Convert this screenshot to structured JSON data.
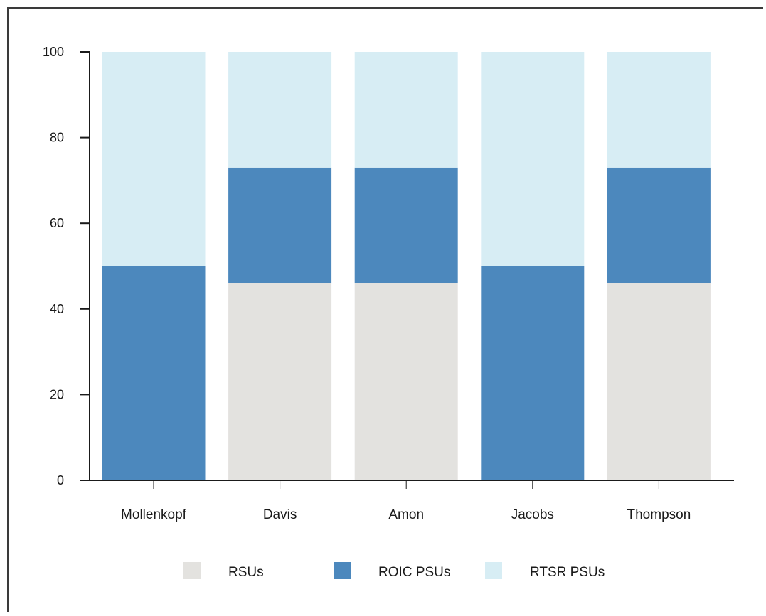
{
  "chart_data": {
    "type": "bar",
    "stacked": true,
    "categories": [
      "Mollenkopf",
      "Davis",
      "Amon",
      "Jacobs",
      "Thompson"
    ],
    "series": [
      {
        "name": "RSUs",
        "color": "#e3e2df",
        "values": [
          0,
          46,
          46,
          0,
          46
        ]
      },
      {
        "name": "ROIC PSUs",
        "color": "#4c88bd",
        "values": [
          50,
          27,
          27,
          50,
          27
        ]
      },
      {
        "name": "RTSR PSUs",
        "color": "#d7edf4",
        "values": [
          50,
          27,
          27,
          50,
          27
        ]
      }
    ],
    "ylim": [
      0,
      100
    ],
    "yticks": [
      0,
      20,
      40,
      60,
      80,
      100
    ],
    "grid": false,
    "legend_position": "bottom"
  }
}
